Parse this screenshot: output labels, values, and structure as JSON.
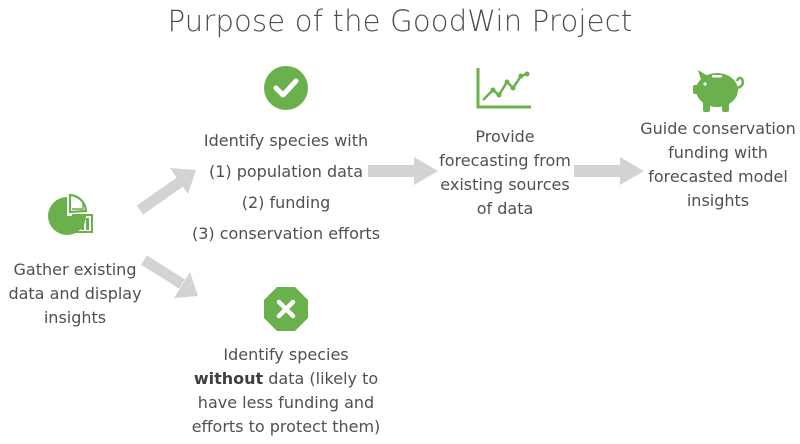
{
  "title": "Purpose of the GoodWin Project",
  "colors": {
    "green": "#6ab04c",
    "arrow": "#d3d3d3",
    "text": "#505050"
  },
  "nodes": {
    "gather": {
      "icon": "pie-chart-icon",
      "lines": [
        "Gather existing",
        "data and display",
        "insights"
      ]
    },
    "identify_with": {
      "icon": "check-circle-icon",
      "lines": [
        "Identify species with",
        "(1) population data",
        "(2) funding",
        "(3) conservation efforts"
      ]
    },
    "forecast": {
      "icon": "line-chart-icon",
      "lines": [
        "Provide",
        "forecasting from",
        "existing sources",
        "of data"
      ]
    },
    "guide": {
      "icon": "piggy-bank-icon",
      "lines": [
        "Guide conservation",
        "funding with",
        "forecasted model",
        "insights"
      ]
    },
    "identify_without": {
      "icon": "x-octagon-icon",
      "line1": "Identify species",
      "line2_bold": "without",
      "line2_rest": " data (likely to",
      "line3": "have less funding and",
      "line4": "efforts to protect them)"
    }
  }
}
